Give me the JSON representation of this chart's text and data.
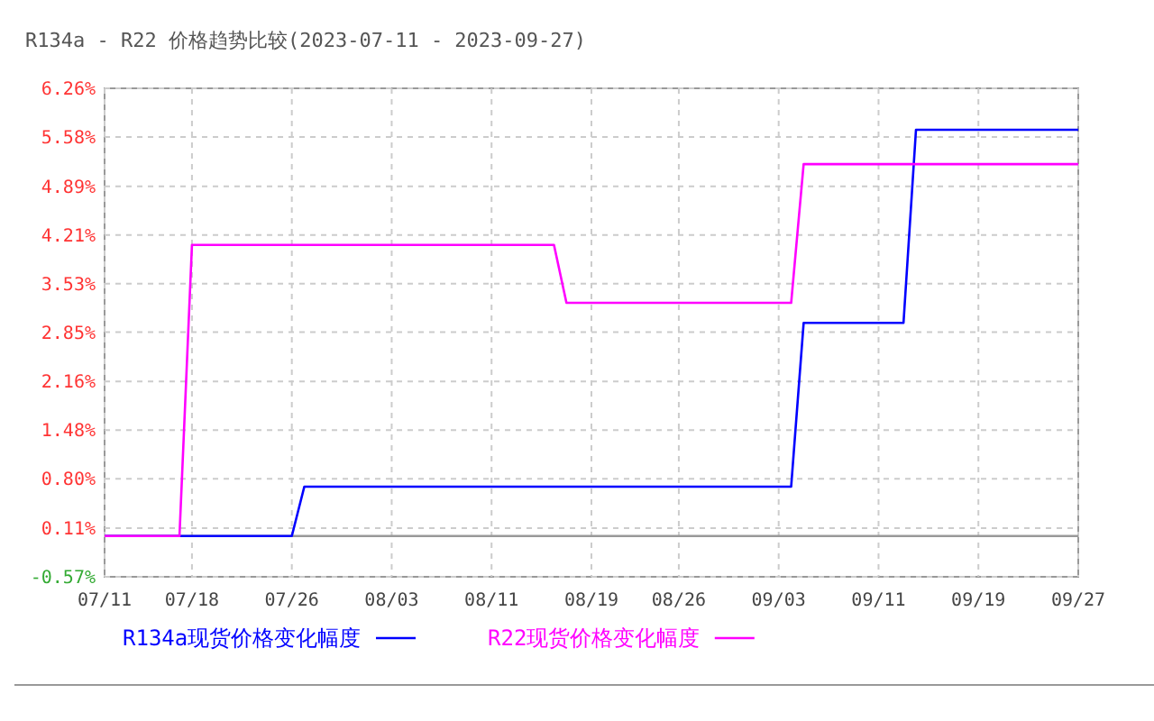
{
  "chart_data": {
    "type": "line",
    "title": "R134a - R22 价格趋势比较(2023-07-11 - 2023-09-27)",
    "xlim": [
      "2023-07-11",
      "2023-09-27"
    ],
    "xticks": [
      {
        "value": "2023-07-11",
        "label": "07/11"
      },
      {
        "value": "2023-07-18",
        "label": "07/18"
      },
      {
        "value": "2023-07-26",
        "label": "07/26"
      },
      {
        "value": "2023-08-03",
        "label": "08/03"
      },
      {
        "value": "2023-08-11",
        "label": "08/11"
      },
      {
        "value": "2023-08-19",
        "label": "08/19"
      },
      {
        "value": "2023-08-26",
        "label": "08/26"
      },
      {
        "value": "2023-09-03",
        "label": "09/03"
      },
      {
        "value": "2023-09-11",
        "label": "09/11"
      },
      {
        "value": "2023-09-19",
        "label": "09/19"
      },
      {
        "value": "2023-09-27",
        "label": "09/27"
      }
    ],
    "ylim": [
      -0.57,
      6.26
    ],
    "yticks": [
      {
        "value": -0.57,
        "label": "-0.57%"
      },
      {
        "value": 0.11,
        "label": "0.11%"
      },
      {
        "value": 0.8,
        "label": "0.80%"
      },
      {
        "value": 1.48,
        "label": "1.48%"
      },
      {
        "value": 2.16,
        "label": "2.16%"
      },
      {
        "value": 2.85,
        "label": "2.85%"
      },
      {
        "value": 3.53,
        "label": "3.53%"
      },
      {
        "value": 4.21,
        "label": "4.21%"
      },
      {
        "value": 4.89,
        "label": "4.89%"
      },
      {
        "value": 5.58,
        "label": "5.58%"
      },
      {
        "value": 6.26,
        "label": "6.26%"
      }
    ],
    "grid": true,
    "legend": "bottom",
    "line_style": "solid",
    "ref_lines": [
      {
        "axis": "y",
        "value": 0,
        "color": "#999999"
      }
    ],
    "series": [
      {
        "name": "R134a现货价格变化幅度",
        "color": "#0000ff",
        "x": [
          "2023-07-11",
          "2023-07-26",
          "2023-07-27",
          "2023-09-04",
          "2023-09-05",
          "2023-09-13",
          "2023-09-14",
          "2023-09-27"
        ],
        "values": [
          0,
          0,
          0.69,
          0.69,
          2.98,
          2.98,
          5.68,
          5.68
        ]
      },
      {
        "name": "R22现货价格变化幅度",
        "color": "#ff00ff",
        "x": [
          "2023-07-11",
          "2023-07-17",
          "2023-07-18",
          "2023-08-16",
          "2023-08-17",
          "2023-09-04",
          "2023-09-05",
          "2023-09-27"
        ],
        "values": [
          0,
          0,
          4.07,
          4.07,
          3.26,
          3.26,
          5.2,
          5.2
        ]
      }
    ]
  }
}
